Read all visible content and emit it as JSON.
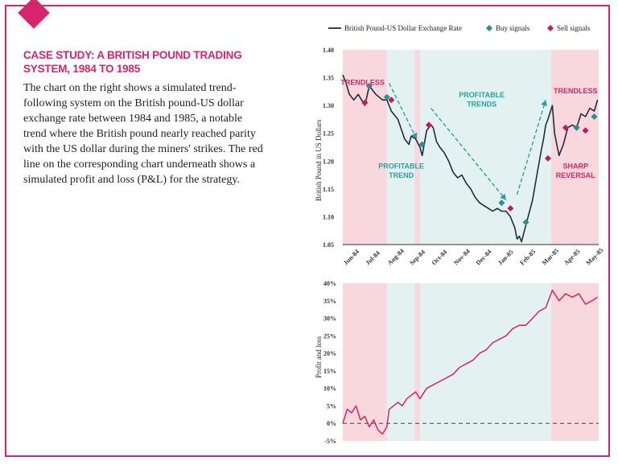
{
  "case_study": {
    "title": "CASE STUDY: A BRITISH POUND TRADING SYSTEM, 1984 TO 1985",
    "body": "The chart on the right shows a simulated trend-following system on the British pound-US dollar exchange rate between 1984 and 1985, a notable trend where the British pound nearly reached parity with the US dollar during the miners' strikes. The red line on the corresponding chart underneath shows a simulated profit and loss (P&L) for the strategy."
  },
  "colors": {
    "accent": "#d6256a",
    "price_line": "#1f2d3d",
    "pnl_line": "#d6256a",
    "buy_signal": "#2a8f8a",
    "sell_signal": "#c8185c",
    "trendless_band": "#f8d7dd",
    "trend_band": "#e3f2f0",
    "annotation_teal": "#2aa0a0"
  },
  "chart_data": [
    {
      "type": "line",
      "ylabel": "British Pound in US Dollars",
      "ylim": [
        1.05,
        1.4
      ],
      "yticks": [
        "1.40",
        "1.35",
        "1.30",
        "1.25",
        "1.20",
        "1.15",
        "1.10",
        "1.05"
      ],
      "x_tick_labels": [
        "Jun-84",
        "Jul-84",
        "Aug-84",
        "Sep-84",
        "Oct-84",
        "Nov-84",
        "Dec-84",
        "Jan-85",
        "Feb-85",
        "Mar-85",
        "Apr-85",
        "May-85"
      ],
      "legend": [
        "British Pound-US Dollar Exchange Rate",
        "Buy signals",
        "Sell signals"
      ],
      "legend_position": "top",
      "series": [
        {
          "name": "British Pound-US Dollar Exchange Rate",
          "x": [
            0,
            0.15,
            0.3,
            0.5,
            0.7,
            1.0,
            1.2,
            1.5,
            1.8,
            2.0,
            2.2,
            2.5,
            2.8,
            3.0,
            3.1,
            3.3,
            3.5,
            3.6,
            3.8,
            4.0,
            4.1,
            4.25,
            4.4,
            4.6,
            4.8,
            5.0,
            5.2,
            5.4,
            5.6,
            5.8,
            6.0,
            6.2,
            6.4,
            6.6,
            6.8,
            7.0,
            7.2,
            7.4,
            7.6,
            7.8,
            7.9,
            8.0,
            8.1,
            8.2,
            8.4,
            8.6,
            8.8,
            9.0,
            9.1,
            9.2,
            9.3,
            9.5,
            9.6,
            9.8,
            10.0,
            10.2,
            10.4,
            10.6,
            10.8,
            11.0,
            11.2,
            11.4,
            11.55
          ],
          "values": [
            1.355,
            1.34,
            1.32,
            1.31,
            1.32,
            1.3,
            1.335,
            1.32,
            1.31,
            1.31,
            1.29,
            1.275,
            1.24,
            1.23,
            1.245,
            1.24,
            1.225,
            1.21,
            1.255,
            1.265,
            1.26,
            1.235,
            1.225,
            1.215,
            1.2,
            1.18,
            1.17,
            1.175,
            1.16,
            1.15,
            1.135,
            1.125,
            1.12,
            1.115,
            1.11,
            1.115,
            1.11,
            1.11,
            1.1,
            1.08,
            1.06,
            1.065,
            1.055,
            1.07,
            1.1,
            1.13,
            1.175,
            1.22,
            1.24,
            1.265,
            1.275,
            1.3,
            1.25,
            1.21,
            1.23,
            1.26,
            1.265,
            1.26,
            1.285,
            1.28,
            1.295,
            1.29,
            1.31
          ]
        }
      ],
      "buy_signals": [
        {
          "x": 1.2,
          "y": 1.335
        },
        {
          "x": 2.0,
          "y": 1.315
        },
        {
          "x": 3.6,
          "y": 1.23
        },
        {
          "x": 7.2,
          "y": 1.125
        },
        {
          "x": 8.3,
          "y": 1.09
        },
        {
          "x": 10.6,
          "y": 1.26
        },
        {
          "x": 11.4,
          "y": 1.28
        }
      ],
      "sell_signals": [
        {
          "x": 1.0,
          "y": 1.305
        },
        {
          "x": 2.2,
          "y": 1.31
        },
        {
          "x": 3.9,
          "y": 1.265
        },
        {
          "x": 7.6,
          "y": 1.115
        },
        {
          "x": 9.3,
          "y": 1.205
        },
        {
          "x": 10.1,
          "y": 1.26
        },
        {
          "x": 11.0,
          "y": 1.255
        }
      ],
      "shaded_regions": [
        {
          "type": "trendless",
          "x0": 0,
          "x1": 2.0
        },
        {
          "type": "trend",
          "x0": 2.0,
          "x1": 3.25
        },
        {
          "type": "trendless",
          "x0": 3.25,
          "x1": 3.5
        },
        {
          "type": "trend",
          "x0": 3.5,
          "x1": 9.45
        },
        {
          "type": "trendless",
          "x0": 9.45,
          "x1": 11.6
        }
      ],
      "annotations": [
        {
          "text": "TRENDLESS",
          "x": 0.9,
          "y": 1.337,
          "color": "accent"
        },
        {
          "text": "PROFITABLE",
          "x": 2.65,
          "y": 1.187,
          "color": "teal"
        },
        {
          "text": "TREND",
          "x": 2.65,
          "y": 1.17,
          "color": "teal"
        },
        {
          "text": "PROFITABLE",
          "x": 6.3,
          "y": 1.315,
          "color": "teal"
        },
        {
          "text": "TRENDS",
          "x": 6.3,
          "y": 1.298,
          "color": "teal"
        },
        {
          "text": "TRENDLESS",
          "x": 10.55,
          "y": 1.322,
          "color": "accent"
        },
        {
          "text": "SHARP",
          "x": 10.55,
          "y": 1.187,
          "color": "accent"
        },
        {
          "text": "REVERSAL",
          "x": 10.55,
          "y": 1.17,
          "color": "accent"
        }
      ],
      "arrows": [
        {
          "x0": 2.1,
          "y0": 1.34,
          "x1": 3.35,
          "y1": 1.24
        },
        {
          "x0": 4.0,
          "y0": 1.295,
          "x1": 7.4,
          "y1": 1.13
        },
        {
          "x0": 7.9,
          "y0": 1.14,
          "x1": 9.2,
          "y1": 1.31
        }
      ]
    },
    {
      "type": "line",
      "ylabel": "Profit and loss",
      "ylim": [
        -5,
        40
      ],
      "yticks": [
        "40%",
        "35%",
        "30%",
        "25%",
        "20%",
        "15%",
        "10%",
        "5%",
        "0%",
        "-5%"
      ],
      "zero_line": "dashed",
      "series": [
        {
          "name": "Profit and loss",
          "x": [
            0,
            0.2,
            0.4,
            0.6,
            0.8,
            1.0,
            1.2,
            1.4,
            1.6,
            1.8,
            2.0,
            2.1,
            2.3,
            2.5,
            2.7,
            2.9,
            3.1,
            3.3,
            3.5,
            3.8,
            4.1,
            4.4,
            4.7,
            5.0,
            5.3,
            5.6,
            5.9,
            6.2,
            6.5,
            6.8,
            7.1,
            7.4,
            7.7,
            8.0,
            8.3,
            8.6,
            8.9,
            9.2,
            9.5,
            9.8,
            10.1,
            10.4,
            10.7,
            11.0,
            11.3,
            11.55
          ],
          "values": [
            0,
            4,
            3,
            5,
            1,
            2,
            -1,
            1,
            -2,
            -3,
            -1,
            4,
            5,
            6,
            5,
            7,
            8,
            9,
            7,
            10,
            11,
            12,
            13,
            14,
            16,
            17,
            18,
            20,
            21,
            23,
            24,
            25,
            27,
            28,
            28,
            30,
            32,
            33,
            38,
            35,
            37,
            36,
            37,
            34,
            35,
            36
          ]
        }
      ],
      "shaded_regions": [
        {
          "type": "trendless",
          "x0": 0,
          "x1": 2.0
        },
        {
          "type": "trend",
          "x0": 2.0,
          "x1": 3.25
        },
        {
          "type": "trendless",
          "x0": 3.25,
          "x1": 3.5
        },
        {
          "type": "trend",
          "x0": 3.5,
          "x1": 9.45
        },
        {
          "type": "trendless",
          "x0": 9.45,
          "x1": 11.6
        }
      ]
    }
  ]
}
